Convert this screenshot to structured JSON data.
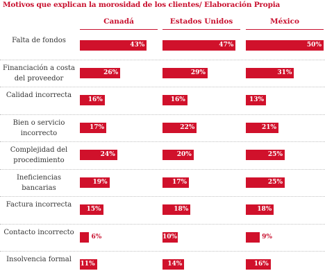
{
  "chart_data": {
    "type": "bar",
    "title": "Motivos que explican la morosidad de los clientes/ Elaboración Propia",
    "xlim": [
      0,
      50
    ],
    "categories": [
      "Falta de fondos",
      "Financiación a costa del proveedor",
      "Calidad incorrecta",
      "Bien o servicio incorrecto",
      "Complejidad del procedimiento",
      "Ineficiencias bancarias",
      "Factura incorrecta",
      "Contacto incorrecto",
      "Insolvencia formal"
    ],
    "series": [
      {
        "name": "Canadá",
        "values": [
          43,
          26,
          16,
          17,
          24,
          19,
          15,
          6,
          11
        ],
        "labels": [
          "43%",
          "26%",
          "16%",
          "17%",
          "24%",
          "19%",
          "15%",
          "6%",
          "11%"
        ]
      },
      {
        "name": "Estados Unidos",
        "values": [
          47,
          29,
          16,
          22,
          20,
          17,
          18,
          10,
          14
        ],
        "labels": [
          "47%",
          "29%",
          "16%",
          "22%",
          "20%",
          "17%",
          "18%",
          "10%",
          "14%"
        ]
      },
      {
        "name": "México",
        "values": [
          50,
          31,
          13,
          21,
          25,
          25,
          18,
          9,
          16
        ],
        "labels": [
          "50%",
          "31%",
          "13%",
          "21%",
          "25%",
          "25%",
          "18%",
          "9%",
          "16%"
        ]
      }
    ],
    "colors": {
      "bar": "#d0112b",
      "accent": "#c8102e"
    }
  }
}
